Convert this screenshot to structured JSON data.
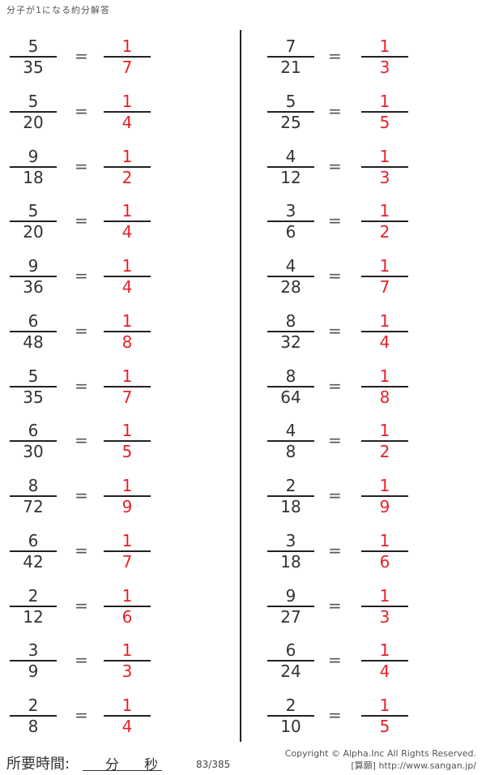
{
  "title": "分子が1になる約分解答",
  "left_column": [
    {
      "num": "5",
      "den": "35",
      "ans_num": "1",
      "ans_den": "7"
    },
    {
      "num": "5",
      "den": "20",
      "ans_num": "1",
      "ans_den": "4"
    },
    {
      "num": "9",
      "den": "18",
      "ans_num": "1",
      "ans_den": "2"
    },
    {
      "num": "5",
      "den": "20",
      "ans_num": "1",
      "ans_den": "4"
    },
    {
      "num": "9",
      "den": "36",
      "ans_num": "1",
      "ans_den": "4"
    },
    {
      "num": "6",
      "den": "48",
      "ans_num": "1",
      "ans_den": "8"
    },
    {
      "num": "5",
      "den": "35",
      "ans_num": "1",
      "ans_den": "7"
    },
    {
      "num": "6",
      "den": "30",
      "ans_num": "1",
      "ans_den": "5"
    },
    {
      "num": "8",
      "den": "72",
      "ans_num": "1",
      "ans_den": "9"
    },
    {
      "num": "6",
      "den": "42",
      "ans_num": "1",
      "ans_den": "7"
    },
    {
      "num": "2",
      "den": "12",
      "ans_num": "1",
      "ans_den": "6"
    },
    {
      "num": "3",
      "den": "9",
      "ans_num": "1",
      "ans_den": "3"
    },
    {
      "num": "2",
      "den": "8",
      "ans_num": "1",
      "ans_den": "4"
    }
  ],
  "right_column": [
    {
      "num": "7",
      "den": "21",
      "ans_num": "1",
      "ans_den": "3"
    },
    {
      "num": "5",
      "den": "25",
      "ans_num": "1",
      "ans_den": "5"
    },
    {
      "num": "4",
      "den": "12",
      "ans_num": "1",
      "ans_den": "3"
    },
    {
      "num": "3",
      "den": "6",
      "ans_num": "1",
      "ans_den": "2"
    },
    {
      "num": "4",
      "den": "28",
      "ans_num": "1",
      "ans_den": "7"
    },
    {
      "num": "8",
      "den": "32",
      "ans_num": "1",
      "ans_den": "4"
    },
    {
      "num": "8",
      "den": "64",
      "ans_num": "1",
      "ans_den": "8"
    },
    {
      "num": "4",
      "den": "8",
      "ans_num": "1",
      "ans_den": "2"
    },
    {
      "num": "2",
      "den": "18",
      "ans_num": "1",
      "ans_den": "9"
    },
    {
      "num": "3",
      "den": "18",
      "ans_num": "1",
      "ans_den": "6"
    },
    {
      "num": "9",
      "den": "27",
      "ans_num": "1",
      "ans_den": "3"
    },
    {
      "num": "6",
      "den": "24",
      "ans_num": "1",
      "ans_den": "4"
    },
    {
      "num": "2",
      "den": "10",
      "ans_num": "1",
      "ans_den": "5"
    }
  ],
  "equals_sign": "=",
  "footer": {
    "time_label": "所要時間:",
    "minutes": "分",
    "seconds": "秒",
    "page": "83/385",
    "copyright": "Copyright ©  Alpha.Inc All Rights Reserved.",
    "site": "[算願] http://www.sangan.jp/"
  },
  "colors": {
    "answer": "#e8202a",
    "text": "#333333"
  }
}
